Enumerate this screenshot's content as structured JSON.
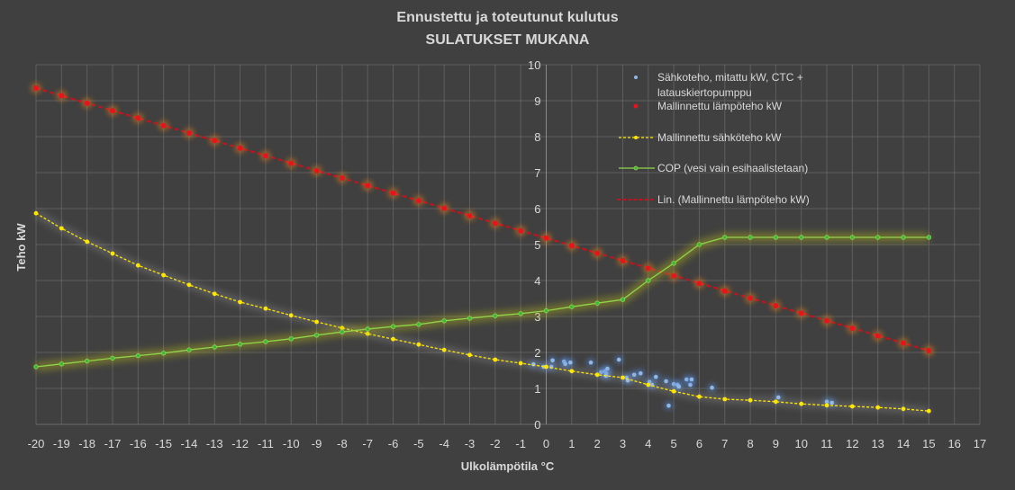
{
  "chart_data": {
    "type": "scatter",
    "title": "Ennustettu ja toteutunut kulutus",
    "subtitle": "SULATUKSET MUKANA",
    "xlabel": "Ulkolämpötila °C",
    "ylabel": "Teho kW",
    "xlim": [
      -20,
      17
    ],
    "ylim": [
      0,
      10
    ],
    "grid": true,
    "legend_position": "top-right",
    "x_ticks": [
      "-20",
      "-19",
      "-18",
      "-17",
      "-16",
      "-15",
      "-14",
      "-13",
      "-12",
      "-11",
      "-10",
      "-9",
      "-8",
      "-7",
      "-6",
      "-5",
      "-4",
      "-3",
      "-2",
      "-1",
      "0",
      "1",
      "2",
      "3",
      "4",
      "5",
      "6",
      "7",
      "8",
      "9",
      "10",
      "11",
      "12",
      "13",
      "14",
      "15",
      "16",
      "17"
    ],
    "y_ticks": [
      "0",
      "1",
      "2",
      "3",
      "4",
      "5",
      "6",
      "7",
      "8",
      "9",
      "10"
    ],
    "colors": {
      "background": "#404040",
      "grid": "#5e5e5e",
      "measured": "#8fb8e8",
      "heat": "#e8141c",
      "electric": "#ffe600",
      "cop": "#8fd44a",
      "cop_marker": "#3cb83c"
    },
    "series": [
      {
        "name": "Sähkoteho, mitattu kW, CTC + latauskiertopumppu",
        "kind": "scatter",
        "points": [
          [
            -0.5,
            1.67
          ],
          [
            -0.1,
            1.6
          ],
          [
            0.2,
            1.6
          ],
          [
            0.25,
            1.78
          ],
          [
            0.7,
            1.75
          ],
          [
            0.75,
            1.68
          ],
          [
            0.95,
            1.72
          ],
          [
            1.75,
            1.72
          ],
          [
            2.15,
            1.45
          ],
          [
            2.3,
            1.48
          ],
          [
            2.35,
            1.42
          ],
          [
            2.4,
            1.55
          ],
          [
            2.35,
            1.35
          ],
          [
            2.85,
            1.8
          ],
          [
            3.15,
            1.3
          ],
          [
            3.2,
            1.22
          ],
          [
            3.45,
            1.38
          ],
          [
            3.7,
            1.42
          ],
          [
            4.05,
            1.18
          ],
          [
            4.15,
            1.1
          ],
          [
            4.3,
            1.32
          ],
          [
            4.7,
            1.2
          ],
          [
            4.8,
            0.52
          ],
          [
            5.0,
            1.12
          ],
          [
            5.15,
            1.1
          ],
          [
            5.2,
            1.05
          ],
          [
            5.5,
            1.25
          ],
          [
            5.65,
            1.1
          ],
          [
            5.7,
            1.25
          ],
          [
            6.5,
            1.02
          ],
          [
            9.1,
            0.75
          ],
          [
            11.0,
            0.63
          ],
          [
            11.2,
            0.6
          ]
        ]
      },
      {
        "name": "Mallinnettu lämpöteho kW",
        "kind": "markers",
        "x": [
          -20,
          -19,
          -18,
          -17,
          -16,
          -15,
          -14,
          -13,
          -12,
          -11,
          -10,
          -9,
          -8,
          -7,
          -6,
          -5,
          -4,
          -3,
          -2,
          -1,
          0,
          1,
          2,
          3,
          4,
          5,
          6,
          7,
          8,
          9,
          10,
          11,
          12,
          13,
          14,
          15
        ],
        "y": [
          9.35,
          9.14,
          8.93,
          8.72,
          8.52,
          8.31,
          8.1,
          7.89,
          7.68,
          7.47,
          7.26,
          7.05,
          6.85,
          6.64,
          6.43,
          6.22,
          6.01,
          5.8,
          5.59,
          5.38,
          5.18,
          4.97,
          4.76,
          4.55,
          4.34,
          4.13,
          3.92,
          3.71,
          3.51,
          3.3,
          3.09,
          2.88,
          2.67,
          2.46,
          2.26,
          2.05
        ]
      },
      {
        "name": "Mallinnettu sähköteho kW",
        "kind": "line-dashed",
        "x": [
          -20,
          -19,
          -18,
          -17,
          -16,
          -15,
          -14,
          -13,
          -12,
          -11,
          -10,
          -9,
          -8,
          -7,
          -6,
          -5,
          -4,
          -3,
          -2,
          -1,
          0,
          1,
          2,
          3,
          4,
          5,
          6,
          7,
          8,
          9,
          10,
          11,
          12,
          13,
          14,
          15
        ],
        "y": [
          5.87,
          5.45,
          5.08,
          4.75,
          4.42,
          4.15,
          3.88,
          3.63,
          3.4,
          3.22,
          3.03,
          2.85,
          2.68,
          2.52,
          2.37,
          2.22,
          2.07,
          1.93,
          1.8,
          1.7,
          1.6,
          1.48,
          1.38,
          1.3,
          1.1,
          0.92,
          0.77,
          0.7,
          0.67,
          0.63,
          0.57,
          0.53,
          0.5,
          0.47,
          0.43,
          0.37
        ]
      },
      {
        "name": "COP (vesi vain esihaalistetaan)",
        "kind": "line",
        "x": [
          -20,
          -19,
          -18,
          -17,
          -16,
          -15,
          -14,
          -13,
          -12,
          -11,
          -10,
          -9,
          -8,
          -7,
          -6,
          -5,
          -4,
          -3,
          -2,
          -1,
          0,
          1,
          2,
          3,
          4,
          5,
          6,
          7,
          8,
          9,
          10,
          11,
          12,
          13,
          14,
          15
        ],
        "y": [
          1.6,
          1.68,
          1.76,
          1.84,
          1.91,
          1.98,
          2.07,
          2.15,
          2.23,
          2.3,
          2.38,
          2.48,
          2.57,
          2.65,
          2.72,
          2.78,
          2.88,
          2.95,
          3.02,
          3.08,
          3.16,
          3.27,
          3.37,
          3.47,
          4.0,
          4.48,
          5.0,
          5.2,
          5.2,
          5.2,
          5.2,
          5.2,
          5.2,
          5.2,
          5.2,
          5.2
        ]
      },
      {
        "name": "Lin. (Mallinnettu lämpöteho kW)",
        "kind": "trendline",
        "x": [
          -20,
          15
        ],
        "y": [
          9.35,
          2.05
        ]
      }
    ]
  },
  "legend": {
    "items": [
      {
        "label": "Sähkoteho, mitattu kW, CTC +",
        "label2": "latauskiertopumppu"
      },
      {
        "label": "Mallinnettu lämpöteho kW"
      },
      {
        "label": "Mallinnettu sähköteho kW"
      },
      {
        "label": "COP (vesi vain esihaalistetaan)"
      },
      {
        "label": "Lin. (Mallinnettu lämpöteho kW)"
      }
    ]
  }
}
